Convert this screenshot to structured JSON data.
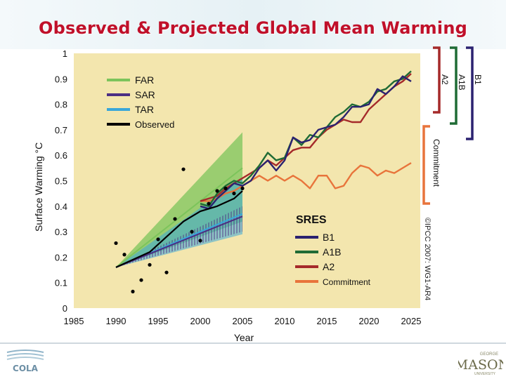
{
  "slide": {
    "title": "Observed & Projected Global Mean Warming"
  },
  "logos": {
    "left": "COLA",
    "right_top": "GEORGE",
    "right_main": "MASON",
    "right_bottom": "UNIVERSITY"
  },
  "colors": {
    "title": "#c0102a",
    "plot_bg": "#f3e6ae",
    "FAR": "#7cc45b",
    "SAR": "#4b2e83",
    "TAR": "#3aa7d9",
    "Observed": "#000000",
    "B1": "#2b2270",
    "A1B": "#1f6b35",
    "A2": "#a52a2a",
    "Commitment": "#e8743b"
  },
  "chart_data": {
    "type": "line",
    "title": "",
    "xlabel": "Year",
    "ylabel": "Surface Warming °C",
    "xlim": [
      1985,
      2025
    ],
    "ylim": [
      0,
      1
    ],
    "xticks": [
      "1985",
      "1990",
      "1995",
      "2000",
      "2005",
      "2010",
      "2015",
      "2020",
      "2025"
    ],
    "yticks": [
      "0",
      "0.1",
      "0.2",
      "0.3",
      "0.4",
      "0.5",
      "0.6",
      "0.7",
      "0.8",
      "0.9",
      "1"
    ],
    "legend_models": [
      "FAR",
      "SAR",
      "TAR",
      "Observed"
    ],
    "legend_sres_title": "SRES",
    "legend_sres": [
      "B1",
      "A1B",
      "A2",
      "Commitment"
    ],
    "bracket_labels": [
      "A2",
      "A1B",
      "B1",
      "Commitment"
    ],
    "credit": "©IPCC 2007: WG1-AR4",
    "far_range": {
      "x": [
        1990,
        2005
      ],
      "low": [
        0.16,
        0.34
      ],
      "high": [
        0.16,
        0.69
      ],
      "mid": [
        0.16,
        0.55
      ]
    },
    "sar_range": {
      "x": [
        1990,
        2005
      ],
      "low": [
        0.16,
        0.3
      ],
      "high": [
        0.16,
        0.4
      ],
      "mid": [
        0.16,
        0.36
      ]
    },
    "tar_range": {
      "x": [
        1990,
        2005
      ],
      "low": [
        0.16,
        0.29
      ],
      "high": [
        0.16,
        0.51
      ],
      "mid": [
        0.16,
        0.37
      ]
    },
    "observed_points": {
      "x": [
        1990,
        1991,
        1992,
        1993,
        1994,
        1995,
        1996,
        1997,
        1998,
        1999,
        2000,
        2001,
        2002,
        2003,
        2004,
        2005
      ],
      "y": [
        0.255,
        0.21,
        0.065,
        0.11,
        0.17,
        0.27,
        0.14,
        0.35,
        0.545,
        0.3,
        0.265,
        0.41,
        0.46,
        0.47,
        0.45,
        0.47
      ]
    },
    "observed_smooth": {
      "x": [
        1990,
        1992,
        1994,
        1996,
        1998,
        2000,
        2002,
        2004,
        2005
      ],
      "y": [
        0.16,
        0.19,
        0.22,
        0.28,
        0.34,
        0.38,
        0.4,
        0.43,
        0.46
      ]
    },
    "series": [
      {
        "name": "A1B",
        "x": [
          2000,
          2001,
          2002,
          2003,
          2004,
          2005,
          2006,
          2007,
          2008,
          2009,
          2010,
          2011,
          2012,
          2013,
          2014,
          2015,
          2016,
          2017,
          2018,
          2019,
          2020,
          2021,
          2022,
          2023,
          2024,
          2025
        ],
        "y": [
          0.41,
          0.4,
          0.45,
          0.48,
          0.5,
          0.49,
          0.52,
          0.56,
          0.61,
          0.58,
          0.59,
          0.67,
          0.64,
          0.68,
          0.67,
          0.71,
          0.75,
          0.77,
          0.8,
          0.79,
          0.81,
          0.85,
          0.86,
          0.89,
          0.9,
          0.93
        ]
      },
      {
        "name": "B1",
        "x": [
          2000,
          2001,
          2002,
          2003,
          2004,
          2005,
          2006,
          2007,
          2008,
          2009,
          2010,
          2011,
          2012,
          2013,
          2014,
          2015,
          2016,
          2017,
          2018,
          2019,
          2020,
          2021,
          2022,
          2023,
          2024,
          2025
        ],
        "y": [
          0.4,
          0.39,
          0.43,
          0.46,
          0.49,
          0.48,
          0.5,
          0.55,
          0.58,
          0.54,
          0.58,
          0.67,
          0.65,
          0.66,
          0.7,
          0.71,
          0.72,
          0.75,
          0.79,
          0.79,
          0.8,
          0.86,
          0.84,
          0.87,
          0.91,
          0.89
        ]
      },
      {
        "name": "A2",
        "x": [
          2000,
          2001,
          2002,
          2003,
          2004,
          2005,
          2006,
          2007,
          2008,
          2009,
          2010,
          2011,
          2012,
          2013,
          2014,
          2015,
          2016,
          2017,
          2018,
          2019,
          2020,
          2021,
          2022,
          2023,
          2024,
          2025
        ],
        "y": [
          0.42,
          0.43,
          0.44,
          0.47,
          0.49,
          0.51,
          0.53,
          0.55,
          0.58,
          0.56,
          0.59,
          0.62,
          0.63,
          0.63,
          0.67,
          0.7,
          0.72,
          0.74,
          0.73,
          0.73,
          0.78,
          0.81,
          0.84,
          0.87,
          0.89,
          0.92
        ]
      },
      {
        "name": "Commitment",
        "x": [
          2000,
          2001,
          2002,
          2003,
          2004,
          2005,
          2006,
          2007,
          2008,
          2009,
          2010,
          2011,
          2012,
          2013,
          2014,
          2015,
          2016,
          2017,
          2018,
          2019,
          2020,
          2021,
          2022,
          2023,
          2024,
          2025
        ],
        "y": [
          0.42,
          0.42,
          0.43,
          0.45,
          0.46,
          0.48,
          0.5,
          0.52,
          0.5,
          0.52,
          0.5,
          0.52,
          0.5,
          0.47,
          0.52,
          0.52,
          0.47,
          0.48,
          0.53,
          0.56,
          0.55,
          0.52,
          0.54,
          0.53,
          0.55,
          0.57
        ]
      }
    ],
    "grid": false,
    "legend_placement": "top-left and bottom-right"
  }
}
